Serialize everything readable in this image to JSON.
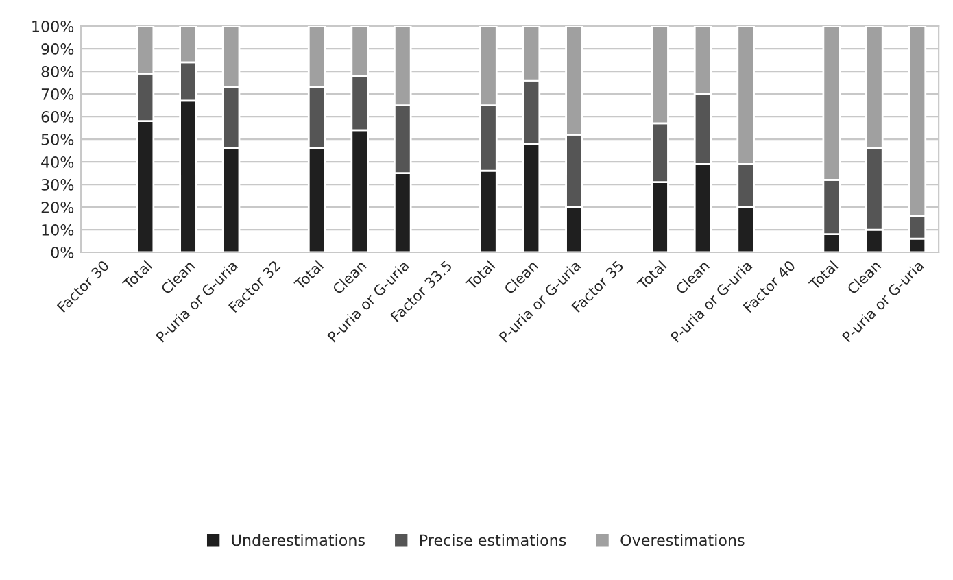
{
  "chart_data": {
    "type": "bar",
    "stacked": true,
    "categories": [
      "Factor 30",
      "Total",
      "Clean",
      "P-uria or G-uria",
      "Factor 32",
      "Total",
      "Clean",
      "P-uria or G-uria",
      "Factor 33.5",
      "Total",
      "Clean",
      "P-uria or G-uria",
      "Factor 35",
      "Total",
      "Clean",
      "P-uria or G-uria",
      "Factor 40",
      "Total",
      "Clean",
      "P-uria or G-uria"
    ],
    "series": [
      {
        "name": "Underestimations",
        "color": "#1f1f1f",
        "values": [
          null,
          58,
          67,
          46,
          null,
          46,
          54,
          35,
          null,
          36,
          48,
          20,
          null,
          31,
          39,
          20,
          null,
          8,
          10,
          6
        ]
      },
      {
        "name": "Precise estimations",
        "color": "#555555",
        "values": [
          null,
          21,
          17,
          27,
          null,
          27,
          24,
          30,
          null,
          29,
          28,
          32,
          null,
          26,
          31,
          19,
          null,
          24,
          36,
          10
        ]
      },
      {
        "name": "Overestimations",
        "color": "#a0a0a0",
        "values": [
          null,
          21,
          16,
          27,
          null,
          27,
          22,
          35,
          null,
          35,
          24,
          48,
          null,
          43,
          30,
          61,
          null,
          68,
          54,
          84
        ]
      }
    ],
    "ylim": [
      0,
      100
    ],
    "yticks": [
      {
        "value": 0,
        "label": "0%"
      },
      {
        "value": 10,
        "label": "10%"
      },
      {
        "value": 20,
        "label": "20%"
      },
      {
        "value": 30,
        "label": "30%"
      },
      {
        "value": 40,
        "label": "40%"
      },
      {
        "value": 50,
        "label": "50%"
      },
      {
        "value": 60,
        "label": "60%"
      },
      {
        "value": 70,
        "label": "70%"
      },
      {
        "value": 80,
        "label": "80%"
      },
      {
        "value": 90,
        "label": "90%"
      },
      {
        "value": 100,
        "label": "100%"
      }
    ],
    "grid": "y",
    "legend": "bottom"
  }
}
